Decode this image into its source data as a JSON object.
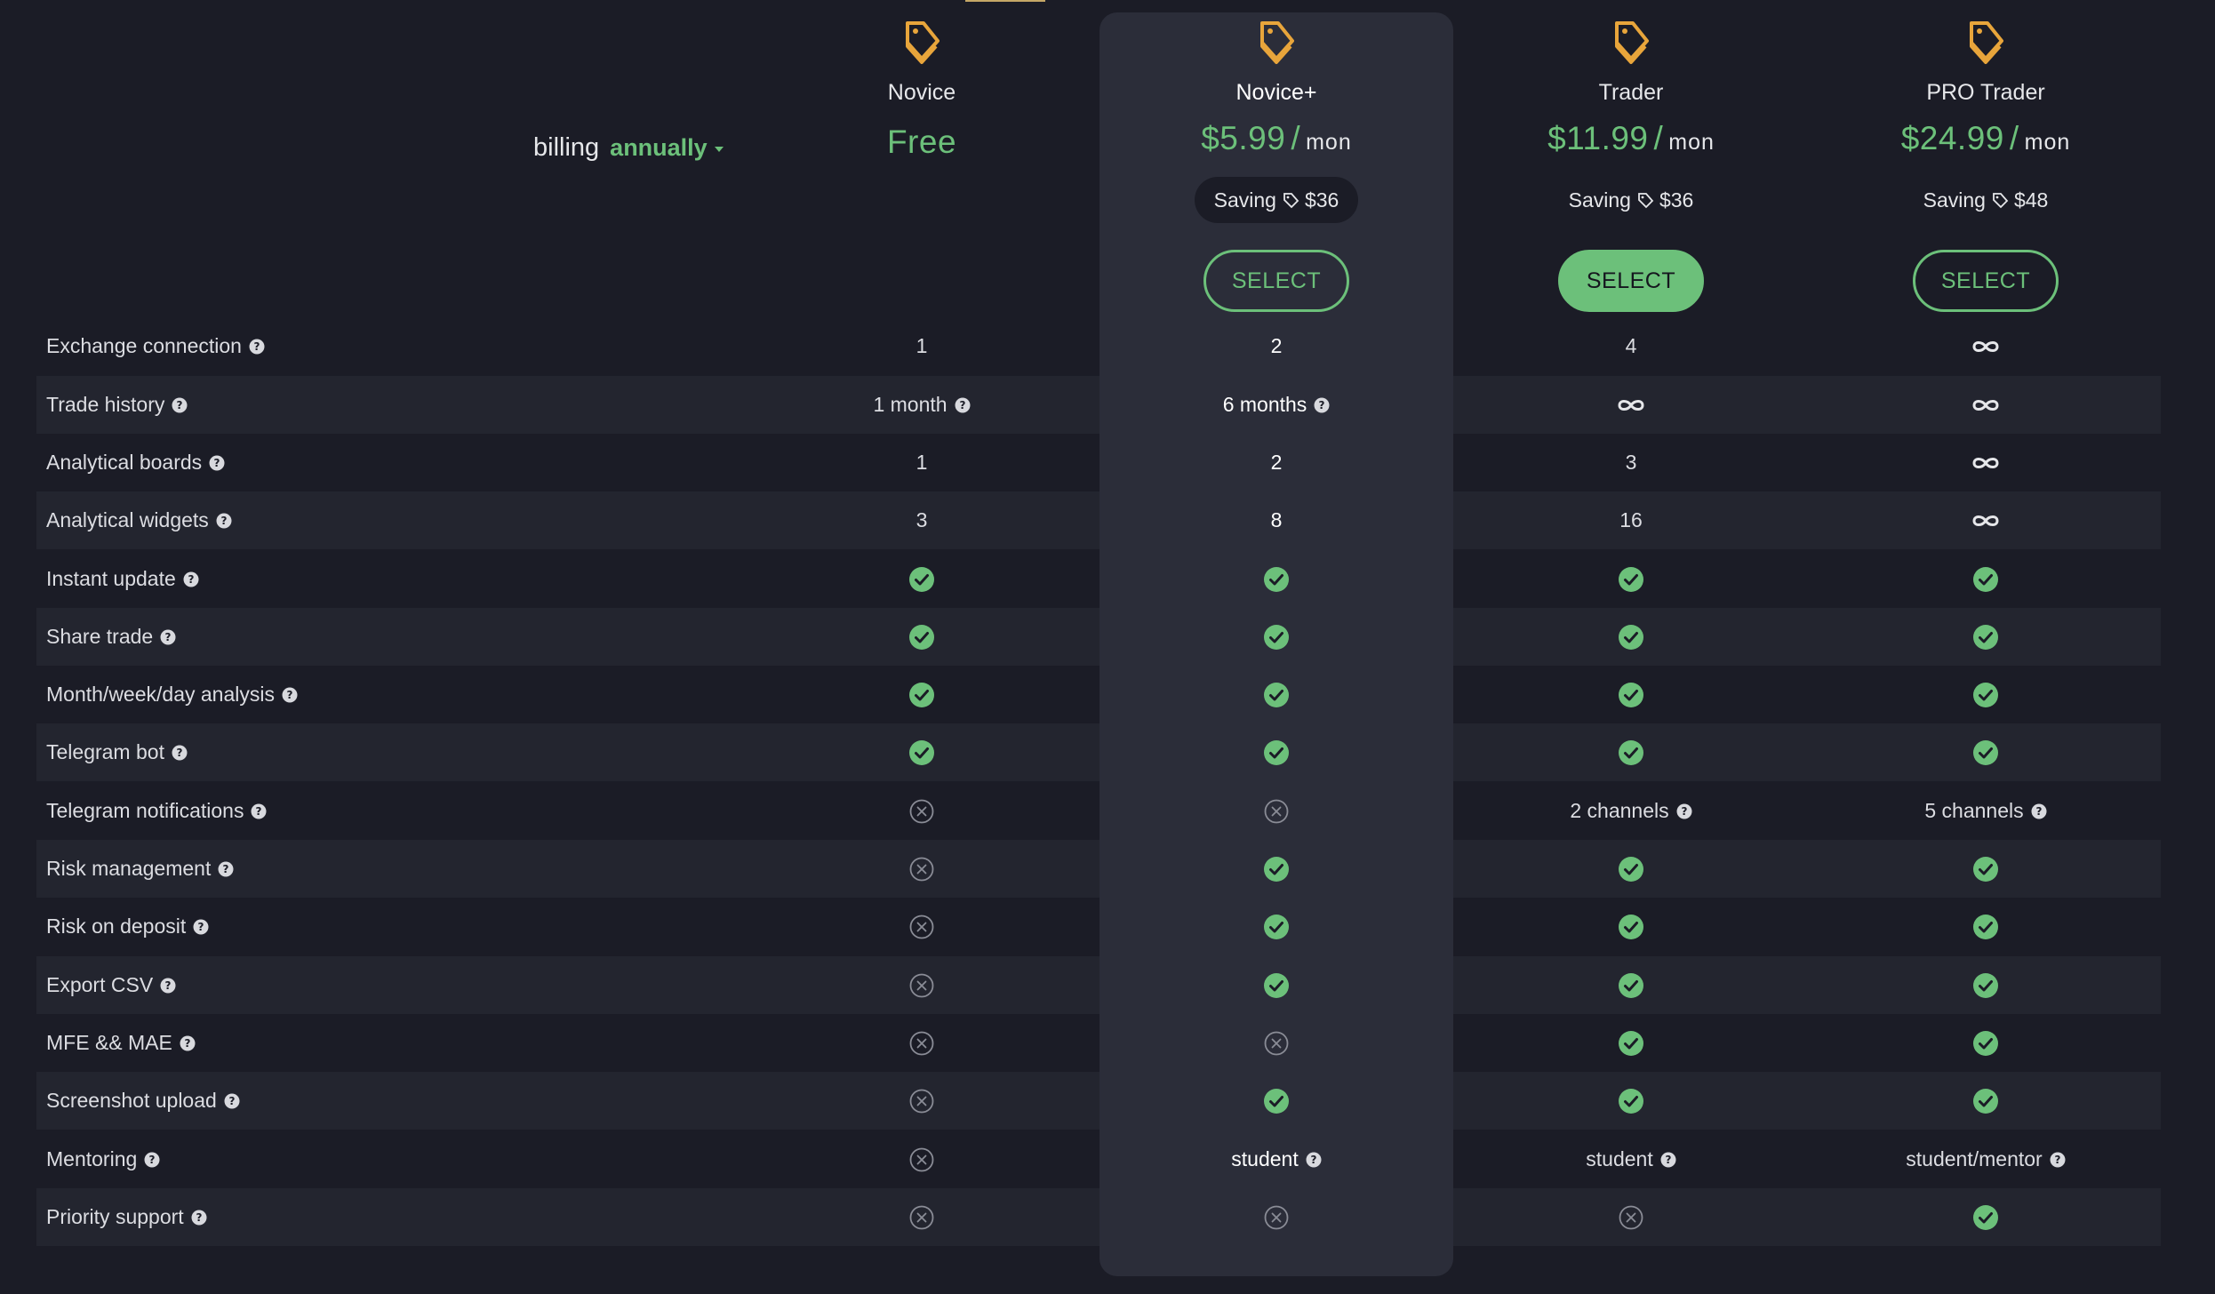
{
  "billing": {
    "label": "billing",
    "value": "annually"
  },
  "colors": {
    "accent_green": "#6cc07a",
    "tag_orange": "#e8a53b",
    "highlight_column": "#2b2d39",
    "background": "#1b1c26"
  },
  "plans": [
    {
      "name": "Novice",
      "price": "Free",
      "icon": "price-tag-icon"
    },
    {
      "name": "Novice+",
      "price": "$5.99",
      "slash": "/",
      "unit": "mon",
      "saving_label": "Saving",
      "saving_amount": "$36",
      "select_label": "SELECT",
      "highlighted": true
    },
    {
      "name": "Trader",
      "price": "$11.99",
      "slash": "/",
      "unit": "mon",
      "saving_label": "Saving",
      "saving_amount": "$36",
      "select_label": "SELECT",
      "select_filled": true
    },
    {
      "name": "PRO Trader",
      "price": "$24.99",
      "slash": "/",
      "unit": "mon",
      "saving_label": "Saving",
      "saving_amount": "$48",
      "select_label": "SELECT"
    }
  ],
  "features": [
    {
      "label": "Exchange connection",
      "values": [
        {
          "t": "text",
          "v": "1"
        },
        {
          "t": "text",
          "v": "2"
        },
        {
          "t": "text",
          "v": "4"
        },
        {
          "t": "inf"
        }
      ]
    },
    {
      "label": "Trade history",
      "values": [
        {
          "t": "text",
          "v": "1 month",
          "help": true
        },
        {
          "t": "text",
          "v": "6 months",
          "help": true
        },
        {
          "t": "inf"
        },
        {
          "t": "inf"
        }
      ]
    },
    {
      "label": "Analytical boards",
      "values": [
        {
          "t": "text",
          "v": "1"
        },
        {
          "t": "text",
          "v": "2"
        },
        {
          "t": "text",
          "v": "3"
        },
        {
          "t": "inf"
        }
      ]
    },
    {
      "label": "Analytical widgets",
      "values": [
        {
          "t": "text",
          "v": "3"
        },
        {
          "t": "text",
          "v": "8"
        },
        {
          "t": "text",
          "v": "16"
        },
        {
          "t": "inf"
        }
      ]
    },
    {
      "label": "Instant update",
      "values": [
        {
          "t": "check"
        },
        {
          "t": "check"
        },
        {
          "t": "check"
        },
        {
          "t": "check"
        }
      ]
    },
    {
      "label": "Share trade",
      "values": [
        {
          "t": "check"
        },
        {
          "t": "check"
        },
        {
          "t": "check"
        },
        {
          "t": "check"
        }
      ]
    },
    {
      "label": "Month/week/day analysis",
      "values": [
        {
          "t": "check"
        },
        {
          "t": "check"
        },
        {
          "t": "check"
        },
        {
          "t": "check"
        }
      ]
    },
    {
      "label": "Telegram bot",
      "values": [
        {
          "t": "check"
        },
        {
          "t": "check"
        },
        {
          "t": "check"
        },
        {
          "t": "check"
        }
      ]
    },
    {
      "label": "Telegram notifications",
      "values": [
        {
          "t": "cross"
        },
        {
          "t": "cross"
        },
        {
          "t": "text",
          "v": "2 channels",
          "help": true
        },
        {
          "t": "text",
          "v": "5 channels",
          "help": true
        }
      ]
    },
    {
      "label": "Risk management",
      "values": [
        {
          "t": "cross"
        },
        {
          "t": "check"
        },
        {
          "t": "check"
        },
        {
          "t": "check"
        }
      ]
    },
    {
      "label": "Risk on deposit",
      "values": [
        {
          "t": "cross"
        },
        {
          "t": "check"
        },
        {
          "t": "check"
        },
        {
          "t": "check"
        }
      ]
    },
    {
      "label": "Export CSV",
      "values": [
        {
          "t": "cross"
        },
        {
          "t": "check"
        },
        {
          "t": "check"
        },
        {
          "t": "check"
        }
      ]
    },
    {
      "label": "MFE && MAE",
      "values": [
        {
          "t": "cross"
        },
        {
          "t": "cross"
        },
        {
          "t": "check"
        },
        {
          "t": "check"
        }
      ]
    },
    {
      "label": "Screenshot upload",
      "values": [
        {
          "t": "cross"
        },
        {
          "t": "check"
        },
        {
          "t": "check"
        },
        {
          "t": "check"
        }
      ]
    },
    {
      "label": "Mentoring",
      "values": [
        {
          "t": "cross"
        },
        {
          "t": "text",
          "v": "student",
          "help": true
        },
        {
          "t": "text",
          "v": "student",
          "help": true
        },
        {
          "t": "text",
          "v": "student/mentor",
          "help": true
        }
      ]
    },
    {
      "label": "Priority support",
      "values": [
        {
          "t": "cross"
        },
        {
          "t": "cross"
        },
        {
          "t": "cross"
        },
        {
          "t": "check"
        }
      ]
    }
  ]
}
